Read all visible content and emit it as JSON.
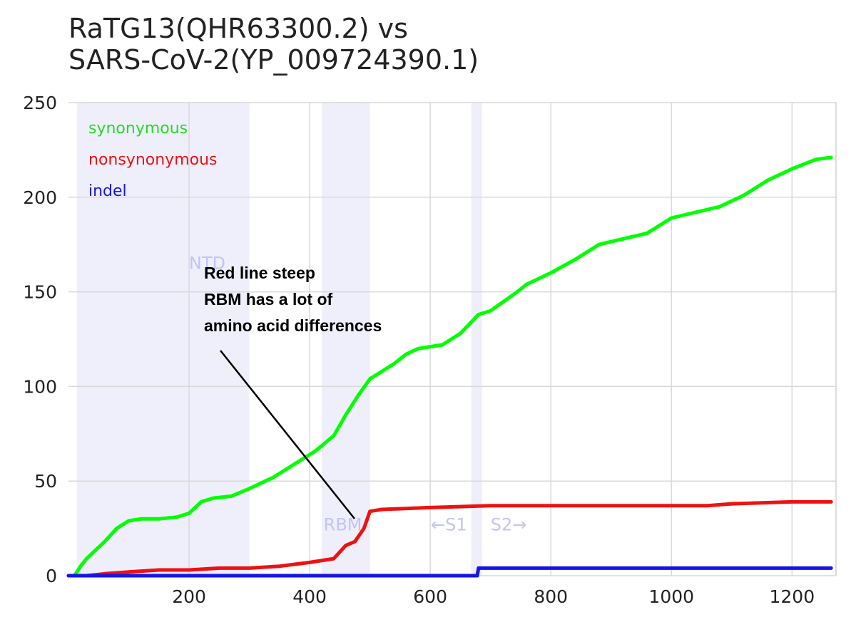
{
  "chart_data": {
    "type": "line",
    "title": [
      "RaTG13(QHR63300.2) vs",
      "SARS-CoV-2(YP_009724390.1)"
    ],
    "xlim": [
      0,
      1273
    ],
    "ylim": [
      0,
      250
    ],
    "x_ticks": [
      200,
      400,
      600,
      800,
      1000,
      1200
    ],
    "y_ticks": [
      0,
      50,
      100,
      150,
      200,
      250
    ],
    "grid": true,
    "legend_position": "top-left",
    "regions": [
      {
        "label": "NTD",
        "x0": 14,
        "x1": 300,
        "label_x": 230,
        "label_y": 162
      },
      {
        "label": "RBM",
        "x0": 420,
        "x1": 500,
        "label_x": 455,
        "label_y": 24
      },
      {
        "label": "←S1",
        "x0": null,
        "x1": null,
        "label_x": 631,
        "label_y": 24
      },
      {
        "label": "S2→",
        "x0": 668,
        "x1": 686,
        "label_x": 730,
        "label_y": 24
      }
    ],
    "series": [
      {
        "name": "synonymous",
        "color": "#00ff00",
        "x": [
          0,
          10,
          20,
          30,
          40,
          60,
          80,
          100,
          120,
          150,
          180,
          200,
          220,
          240,
          270,
          300,
          340,
          380,
          410,
          440,
          460,
          480,
          500,
          520,
          540,
          560,
          580,
          600,
          620,
          650,
          680,
          700,
          740,
          760,
          800,
          840,
          880,
          920,
          960,
          1000,
          1040,
          1080,
          1120,
          1160,
          1200,
          1240,
          1265
        ],
        "y": [
          0,
          0,
          5,
          9,
          12,
          18,
          25,
          29,
          30,
          30,
          31,
          33,
          39,
          41,
          42,
          46,
          52,
          60,
          66,
          74,
          85,
          95,
          104,
          108,
          112,
          117,
          120,
          121,
          122,
          128,
          138,
          140,
          149,
          154,
          160,
          167,
          175,
          178,
          181,
          189,
          192,
          195,
          201,
          209,
          215,
          220,
          221
        ]
      },
      {
        "name": "nonsynonymous",
        "color": "#ee1111",
        "x": [
          0,
          30,
          60,
          100,
          150,
          200,
          250,
          300,
          350,
          400,
          440,
          460,
          475,
          490,
          500,
          520,
          600,
          700,
          800,
          900,
          1000,
          1060,
          1100,
          1200,
          1265
        ],
        "y": [
          0,
          0,
          1,
          2,
          3,
          3,
          4,
          4,
          5,
          7,
          9,
          16,
          18,
          25,
          34,
          35,
          36,
          37,
          37,
          37,
          37,
          37,
          38,
          39,
          39
        ]
      },
      {
        "name": "indel",
        "color": "#1515e6",
        "x": [
          0,
          678,
          680,
          1265
        ],
        "y": [
          0,
          0,
          4,
          4
        ]
      }
    ],
    "annotation": {
      "lines": [
        "Red line steep",
        "RBM has a lot of",
        "amino acid differences"
      ]
    }
  }
}
